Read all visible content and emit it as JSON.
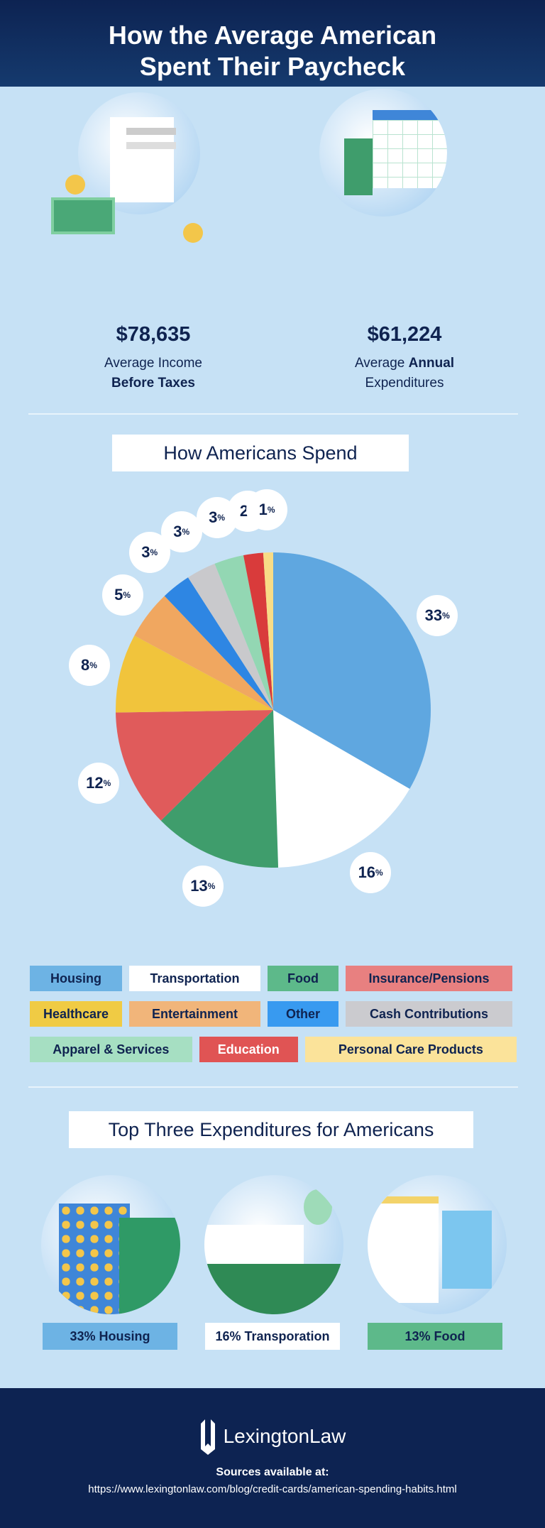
{
  "header": {
    "title_line1": "How the Average American",
    "title_line2": "Spent Their Paycheck"
  },
  "stats": [
    {
      "value": "$78,635",
      "label_line1": "Average Income",
      "label_line2": "Before Taxes"
    },
    {
      "value": "$61,224",
      "label_pre": "Average ",
      "label_bold": "Annual",
      "label_line2": "Expenditures"
    }
  ],
  "pie_title": "How Americans Spend",
  "chart_data": {
    "type": "pie",
    "title": "How Americans Spend",
    "categories": [
      "Housing",
      "Transportation",
      "Food",
      "Insurance/Pensions",
      "Healthcare",
      "Entertainment",
      "Other",
      "Cash Contributions",
      "Apparel & Services",
      "Education",
      "Personal Care Products"
    ],
    "values": [
      33,
      16,
      13,
      12,
      8,
      5,
      3,
      3,
      3,
      2,
      1
    ],
    "colors": [
      "#5fa7e0",
      "#ffffff",
      "#3f9d6c",
      "#e05b5b",
      "#f1c43c",
      "#f0a760",
      "#2e86e3",
      "#c9c9cc",
      "#93d7b3",
      "#d93b3b",
      "#f8dc86"
    ],
    "legend_colors": [
      "#6db3e4",
      "#ffffff",
      "#5db98a",
      "#e88080",
      "#f0cb44",
      "#f1b57a",
      "#389af0",
      "#cbcbcf",
      "#a6dfc2",
      "#e05454",
      "#fbe39a"
    ],
    "legend_text_colors": [
      "#0f2350",
      "#0f2350",
      "#0f2350",
      "#0f2350",
      "#0f2350",
      "#0f2350",
      "#0f2350",
      "#0f2350",
      "#0f2350",
      "#ffffff",
      "#0f2350"
    ],
    "unit": "%",
    "legend_position": "bottom"
  },
  "top3": {
    "title": "Top Three Expenditures for Americans",
    "items": [
      {
        "label": "33% Housing",
        "color": "#6db3e4"
      },
      {
        "label": "16% Transporation",
        "color": "#ffffff"
      },
      {
        "label": "13% Food",
        "color": "#5db98a"
      }
    ]
  },
  "footer": {
    "brand": "LexingtonLaw",
    "sources_label": "Sources available at:",
    "url": "https://www.lexingtonlaw.com/blog/credit-cards/american-spending-habits.html"
  }
}
